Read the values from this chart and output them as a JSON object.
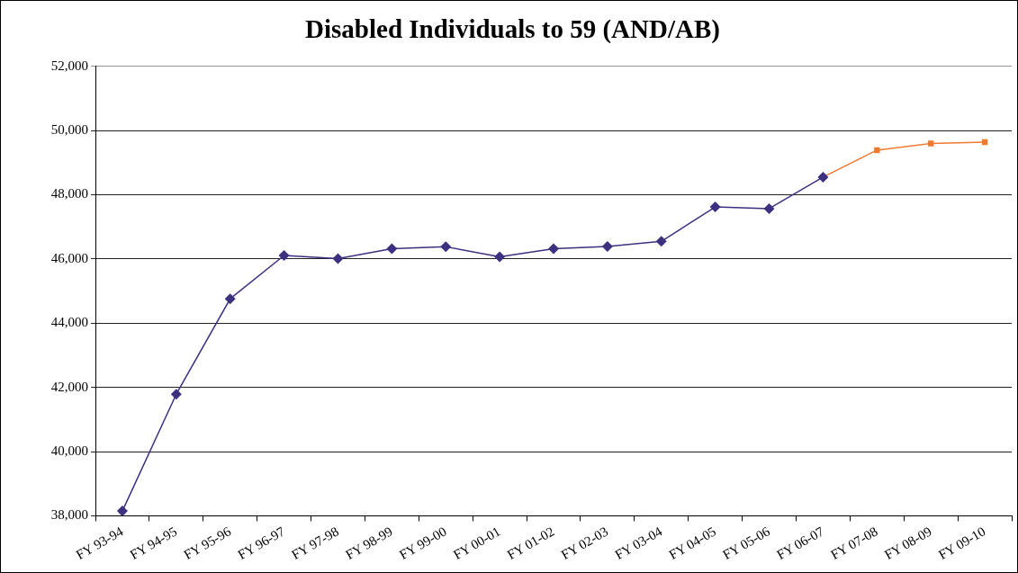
{
  "chart_data": {
    "type": "line",
    "title": "Disabled Individuals to 59 (AND/AB)",
    "categories": [
      "FY 93-94",
      "FY 94-95",
      "FY 95-96",
      "FY 96-97",
      "FY 97-98",
      "FY 98-99",
      "FY 99-00",
      "FY 00-01",
      "FY 01-02",
      "FY 02-03",
      "FY 03-04",
      "FY 04-05",
      "FY 05-06",
      "FY 06-07",
      "FY 07-08",
      "FY 08-09",
      "FY 09-10"
    ],
    "series": [
      {
        "color": "#3b3180",
        "marker": "diamond",
        "values": [
          38150,
          41790,
          44760,
          46110,
          46010,
          46320,
          46380,
          46070,
          46320,
          46390,
          46550,
          47620,
          47570,
          48550,
          null,
          null,
          null
        ]
      },
      {
        "color": "#f07a30",
        "marker": "square",
        "values": [
          null,
          null,
          null,
          null,
          null,
          null,
          null,
          null,
          null,
          null,
          null,
          null,
          null,
          48550,
          49390,
          49600,
          49640
        ]
      }
    ],
    "ylim": [
      38000,
      52000
    ],
    "yticks": [
      {
        "value": 38000,
        "label": "38,000"
      },
      {
        "value": 40000,
        "label": "40,000"
      },
      {
        "value": 42000,
        "label": "42,000"
      },
      {
        "value": 44000,
        "label": "44,000"
      },
      {
        "value": 46000,
        "label": "46,000"
      },
      {
        "value": 48000,
        "label": "48,000"
      },
      {
        "value": 50000,
        "label": "50,000"
      },
      {
        "value": 52000,
        "label": "52,000"
      }
    ],
    "grid": "y",
    "legend": false
  }
}
